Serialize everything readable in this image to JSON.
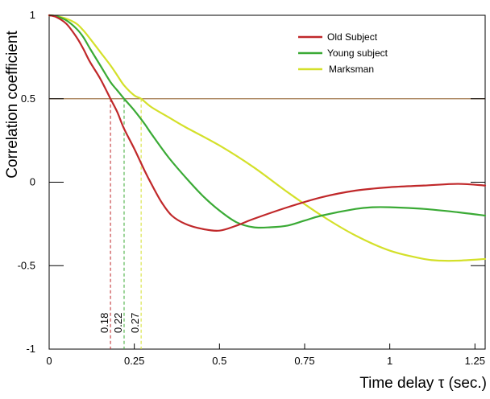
{
  "chart_data": {
    "type": "line",
    "xlabel": "Time delay  τ  (sec.)",
    "ylabel": "Correlation coefficient",
    "xlim": [
      0,
      1.28
    ],
    "ylim": [
      -1,
      1
    ],
    "xticks": [
      {
        "value": 0,
        "label": "0"
      },
      {
        "value": 0.25,
        "label": "0.25"
      },
      {
        "value": 0.5,
        "label": "0.5"
      },
      {
        "value": 0.75,
        "label": "0.75"
      },
      {
        "value": 1,
        "label": "1"
      },
      {
        "value": 1.25,
        "label": "1.25"
      }
    ],
    "yticks": [
      {
        "value": 1,
        "label": "1"
      },
      {
        "value": 0.5,
        "label": "0.5"
      },
      {
        "value": 0,
        "label": "0"
      },
      {
        "value": -0.5,
        "label": "-0.5"
      },
      {
        "value": -1,
        "label": "-1"
      }
    ],
    "grid": false,
    "legend_position": "top-right",
    "reference_line": {
      "y": 0.5,
      "color": "#a0764a"
    },
    "series": [
      {
        "name": "Old Subject",
        "color": "#c0282a",
        "x": [
          0,
          0.02,
          0.05,
          0.08,
          0.1,
          0.12,
          0.15,
          0.18,
          0.2,
          0.22,
          0.25,
          0.28,
          0.3,
          0.33,
          0.36,
          0.4,
          0.45,
          0.5,
          0.55,
          0.6,
          0.7,
          0.8,
          0.9,
          1.0,
          1.1,
          1.2,
          1.28
        ],
        "y": [
          1.0,
          0.99,
          0.95,
          0.87,
          0.8,
          0.72,
          0.62,
          0.5,
          0.42,
          0.32,
          0.2,
          0.07,
          -0.01,
          -0.12,
          -0.2,
          -0.25,
          -0.28,
          -0.29,
          -0.26,
          -0.22,
          -0.15,
          -0.09,
          -0.05,
          -0.03,
          -0.02,
          -0.01,
          -0.02
        ]
      },
      {
        "name": "Young subject",
        "color": "#3aaa35",
        "x": [
          0,
          0.02,
          0.05,
          0.08,
          0.1,
          0.12,
          0.15,
          0.18,
          0.2,
          0.22,
          0.25,
          0.28,
          0.3,
          0.35,
          0.4,
          0.45,
          0.5,
          0.55,
          0.6,
          0.65,
          0.7,
          0.75,
          0.8,
          0.9,
          0.95,
          1.0,
          1.1,
          1.2,
          1.28
        ],
        "y": [
          1.0,
          0.995,
          0.97,
          0.92,
          0.87,
          0.8,
          0.7,
          0.6,
          0.55,
          0.5,
          0.43,
          0.35,
          0.29,
          0.15,
          0.03,
          -0.08,
          -0.17,
          -0.24,
          -0.27,
          -0.27,
          -0.26,
          -0.23,
          -0.2,
          -0.16,
          -0.15,
          -0.15,
          -0.16,
          -0.18,
          -0.2
        ]
      },
      {
        "name": "Marksman",
        "color": "#d4e02a",
        "x": [
          0,
          0.02,
          0.05,
          0.08,
          0.1,
          0.12,
          0.15,
          0.18,
          0.2,
          0.22,
          0.25,
          0.27,
          0.3,
          0.35,
          0.4,
          0.5,
          0.6,
          0.7,
          0.8,
          0.9,
          1.0,
          1.1,
          1.15,
          1.2,
          1.28
        ],
        "y": [
          1.0,
          0.995,
          0.98,
          0.95,
          0.91,
          0.86,
          0.78,
          0.7,
          0.64,
          0.58,
          0.52,
          0.5,
          0.45,
          0.39,
          0.33,
          0.22,
          0.09,
          -0.06,
          -0.2,
          -0.32,
          -0.41,
          -0.46,
          -0.47,
          -0.47,
          -0.46
        ]
      }
    ],
    "annotations": [
      {
        "x": 0.18,
        "label": "0.18",
        "color": "#c0282a"
      },
      {
        "x": 0.22,
        "label": "0.22",
        "color": "#3aaa35"
      },
      {
        "x": 0.27,
        "label": "0.27",
        "color": "#d4e02a"
      }
    ]
  }
}
